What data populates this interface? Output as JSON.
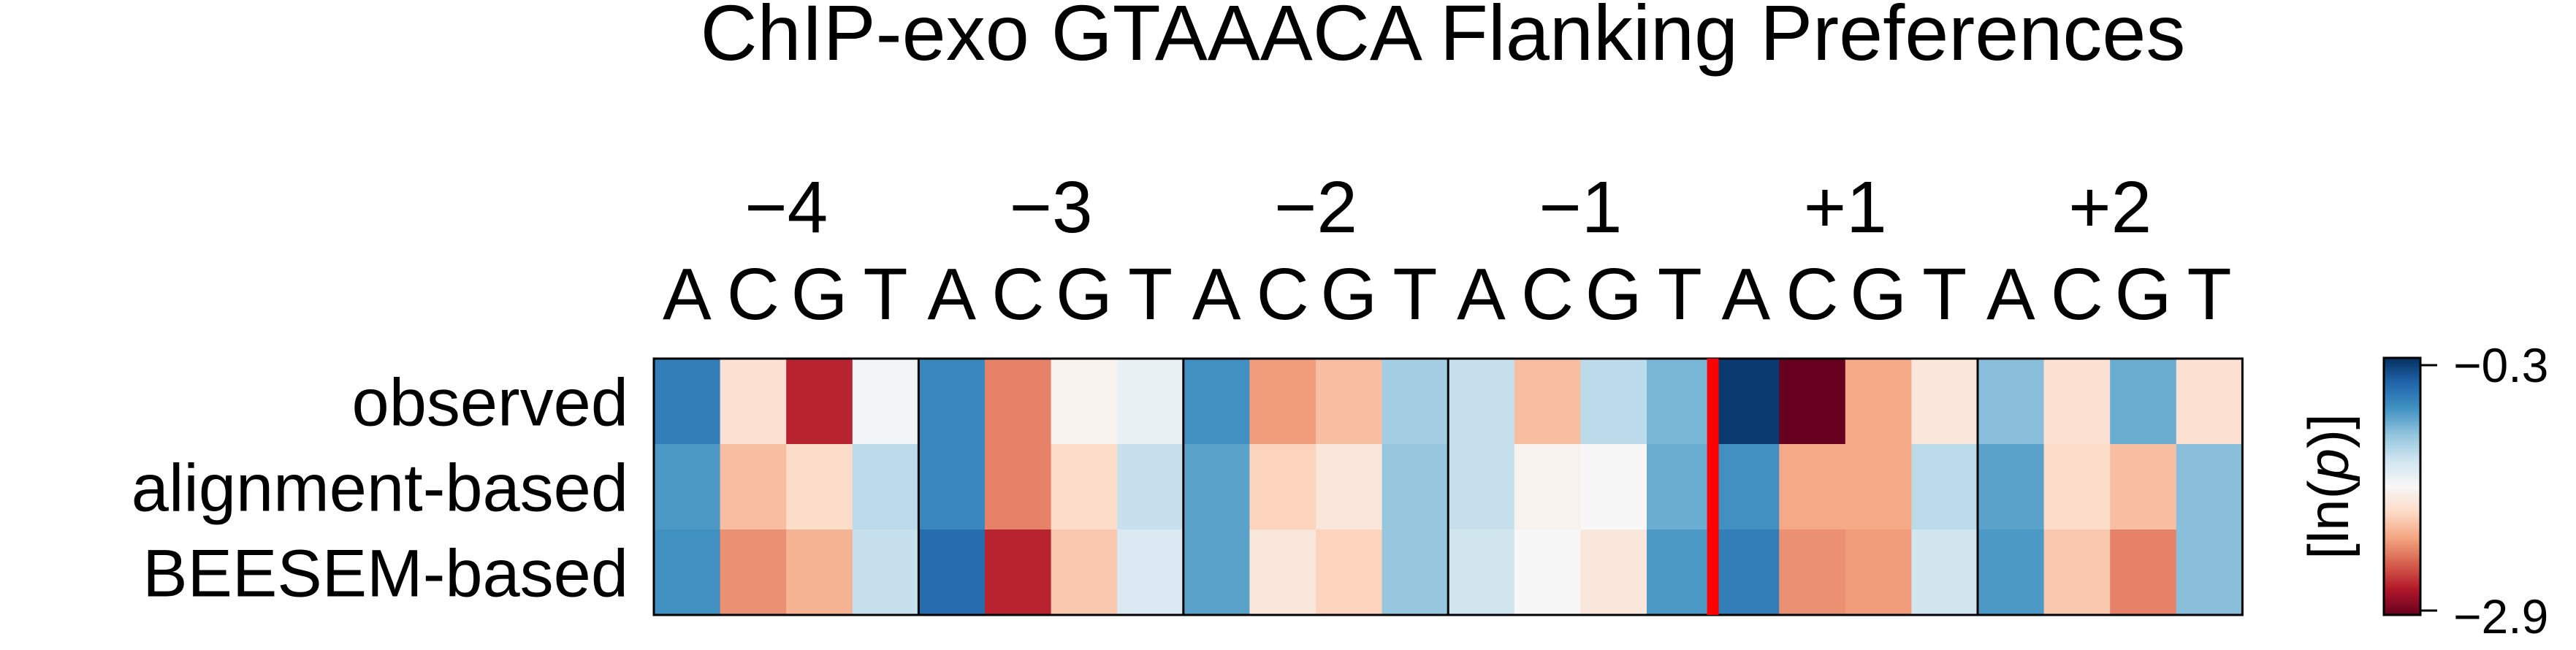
{
  "chart_data": {
    "type": "heatmap",
    "title": "ChIP-exo GTAAACA Flanking Preferences",
    "positions": [
      "−4",
      "−3",
      "−2",
      "−1",
      "+1",
      "+2"
    ],
    "bases": [
      "A",
      "C",
      "G",
      "T"
    ],
    "rows": [
      "observed",
      "alignment-based",
      "BEESEM-based"
    ],
    "values": [
      [
        -0.7,
        -1.8,
        -2.6,
        -1.55,
        -0.75,
        -2.25,
        -1.65,
        -1.5,
        -0.8,
        -2.15,
        -2.0,
        -1.15,
        -1.3,
        -2.0,
        -1.25,
        -1.0,
        -0.35,
        -2.9,
        -2.1,
        -1.75,
        -1.05,
        -1.8,
        -0.95,
        -1.8
      ],
      [
        -0.85,
        -2.0,
        -1.85,
        -1.25,
        -0.75,
        -2.25,
        -1.85,
        -1.3,
        -0.9,
        -1.9,
        -1.75,
        -1.1,
        -1.3,
        -1.65,
        -1.6,
        -0.95,
        -0.8,
        -2.1,
        -2.1,
        -1.25,
        -0.9,
        -1.85,
        -2.0,
        -1.05
      ],
      [
        -0.8,
        -2.2,
        -2.05,
        -1.3,
        -0.6,
        -2.6,
        -1.95,
        -1.4,
        -0.9,
        -1.75,
        -1.9,
        -1.1,
        -1.35,
        -1.6,
        -1.75,
        -0.85,
        -0.7,
        -2.2,
        -2.15,
        -1.35,
        -0.85,
        -1.95,
        -2.25,
        -1.05
      ]
    ],
    "divider_after_position": "−1",
    "colorbar": {
      "label": "[ln(p)]",
      "label_prefix": "[ln(",
      "label_italic": "p",
      "label_suffix": ")]",
      "max": -0.3,
      "min": -2.9,
      "max_label": "−0.3",
      "min_label": "−2.9",
      "colormap": "RdBu"
    },
    "divider_color": "#ff0000"
  }
}
